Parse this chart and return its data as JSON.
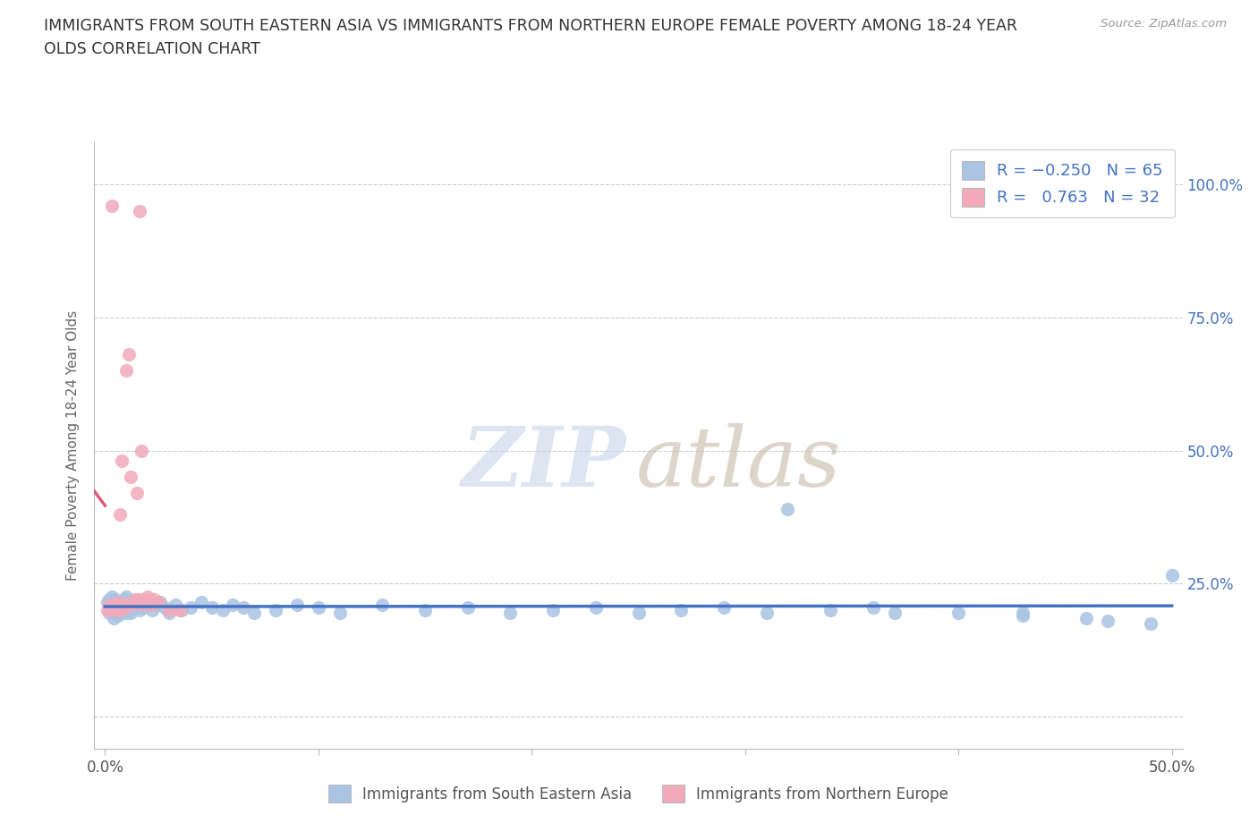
{
  "title_line1": "IMMIGRANTS FROM SOUTH EASTERN ASIA VS IMMIGRANTS FROM NORTHERN EUROPE FEMALE POVERTY AMONG 18-24 YEAR",
  "title_line2": "OLDS CORRELATION CHART",
  "source_text": "Source: ZipAtlas.com",
  "ylabel": "Female Poverty Among 18-24 Year Olds",
  "xlim": [
    -0.005,
    0.505
  ],
  "ylim": [
    -0.06,
    1.08
  ],
  "x_ticks": [
    0.0,
    0.1,
    0.2,
    0.3,
    0.4,
    0.5
  ],
  "x_tick_labels": [
    "0.0%",
    "",
    "",
    "",
    "",
    "50.0%"
  ],
  "y_ticks": [
    0.0,
    0.25,
    0.5,
    0.75,
    1.0
  ],
  "y_tick_right_labels": [
    "",
    "25.0%",
    "50.0%",
    "75.0%",
    "100.0%"
  ],
  "blue_fill": "#aac4e2",
  "pink_fill": "#f2aabb",
  "blue_line": "#4472c4",
  "pink_line": "#e05c78",
  "R_blue": -0.25,
  "N_blue": 65,
  "R_pink": 0.763,
  "N_pink": 32,
  "legend_label_blue": "Immigrants from South Eastern Asia",
  "legend_label_pink": "Immigrants from Northern Europe",
  "blue_x": [
    0.001,
    0.002,
    0.002,
    0.003,
    0.003,
    0.004,
    0.004,
    0.005,
    0.005,
    0.006,
    0.006,
    0.007,
    0.008,
    0.009,
    0.01,
    0.01,
    0.011,
    0.012,
    0.013,
    0.014,
    0.015,
    0.016,
    0.017,
    0.018,
    0.019,
    0.02,
    0.022,
    0.024,
    0.026,
    0.028,
    0.03,
    0.033,
    0.036,
    0.04,
    0.045,
    0.05,
    0.055,
    0.06,
    0.065,
    0.07,
    0.08,
    0.09,
    0.1,
    0.11,
    0.13,
    0.15,
    0.17,
    0.19,
    0.21,
    0.23,
    0.25,
    0.27,
    0.29,
    0.31,
    0.34,
    0.37,
    0.4,
    0.43,
    0.46,
    0.49,
    0.32,
    0.36,
    0.43,
    0.47,
    0.5
  ],
  "blue_y": [
    0.215,
    0.22,
    0.195,
    0.21,
    0.225,
    0.185,
    0.21,
    0.2,
    0.22,
    0.19,
    0.215,
    0.205,
    0.2,
    0.22,
    0.225,
    0.195,
    0.21,
    0.195,
    0.215,
    0.205,
    0.21,
    0.2,
    0.215,
    0.205,
    0.21,
    0.215,
    0.2,
    0.21,
    0.215,
    0.205,
    0.195,
    0.21,
    0.2,
    0.205,
    0.215,
    0.205,
    0.2,
    0.21,
    0.205,
    0.195,
    0.2,
    0.21,
    0.205,
    0.195,
    0.21,
    0.2,
    0.205,
    0.195,
    0.2,
    0.205,
    0.195,
    0.2,
    0.205,
    0.195,
    0.2,
    0.195,
    0.195,
    0.19,
    0.185,
    0.175,
    0.39,
    0.205,
    0.195,
    0.18,
    0.265
  ],
  "pink_x": [
    0.001,
    0.002,
    0.003,
    0.004,
    0.005,
    0.006,
    0.007,
    0.007,
    0.008,
    0.008,
    0.009,
    0.01,
    0.01,
    0.011,
    0.012,
    0.013,
    0.014,
    0.015,
    0.015,
    0.016,
    0.016,
    0.017,
    0.018,
    0.018,
    0.019,
    0.02,
    0.021,
    0.022,
    0.023,
    0.025,
    0.03,
    0.035
  ],
  "pink_y": [
    0.2,
    0.21,
    0.96,
    0.2,
    0.21,
    0.215,
    0.2,
    0.38,
    0.21,
    0.48,
    0.205,
    0.21,
    0.65,
    0.68,
    0.45,
    0.21,
    0.22,
    0.215,
    0.42,
    0.95,
    0.22,
    0.5,
    0.21,
    0.215,
    0.22,
    0.225,
    0.215,
    0.21,
    0.22,
    0.215,
    0.2,
    0.2
  ]
}
